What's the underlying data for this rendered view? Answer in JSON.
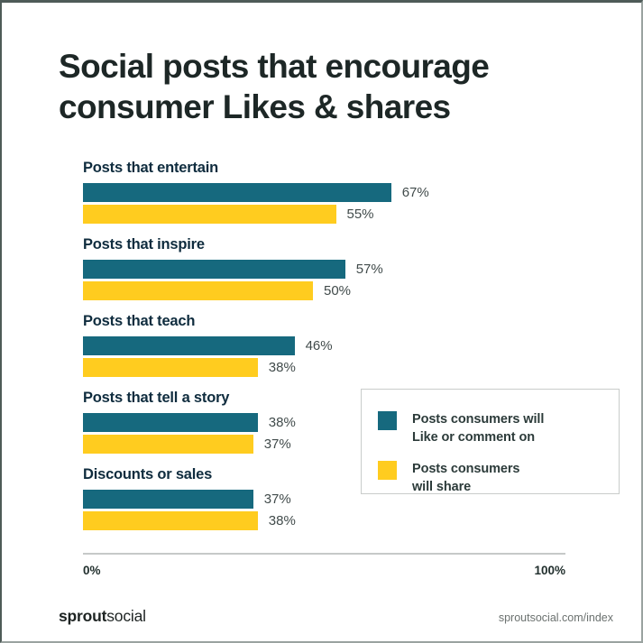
{
  "header": {
    "title": "Social posts that encourage\nconsumer Likes & shares"
  },
  "chart_data": {
    "type": "bar",
    "orientation": "horizontal",
    "title": "Social posts that encourage consumer Likes & shares",
    "categories": [
      "Posts that entertain",
      "Posts that inspire",
      "Posts that teach",
      "Posts that tell a story",
      "Discounts or sales"
    ],
    "series": [
      {
        "name": "Posts consumers will Like or comment on",
        "color": "#16697E",
        "values": [
          67,
          57,
          46,
          38,
          37
        ]
      },
      {
        "name": "Posts consumers will share",
        "color": "#FFCC1F",
        "values": [
          55,
          50,
          38,
          37,
          38
        ]
      }
    ],
    "value_suffix": "%",
    "xlabel": "",
    "ylabel": "",
    "xlim": [
      0,
      100
    ],
    "grid": false,
    "legend_position": "right-middle"
  },
  "legend": {
    "items": [
      {
        "label": "Posts consumers will\nLike or comment on",
        "color": "#16697E"
      },
      {
        "label": "Posts consumers\nwill share",
        "color": "#FFCC1F"
      }
    ]
  },
  "axis": {
    "min_label": "0%",
    "max_label": "100%"
  },
  "footer": {
    "logo_bold": "sprout",
    "logo_regular": "social",
    "url": "sproutsocial.com/index"
  },
  "colors": {
    "teal": "#16697E",
    "yellow": "#FFCC1F",
    "title_text": "#1D2726",
    "category_text": "#0F2C3E",
    "value_text": "#414B4B",
    "axis_line": "#C6C9C8"
  }
}
